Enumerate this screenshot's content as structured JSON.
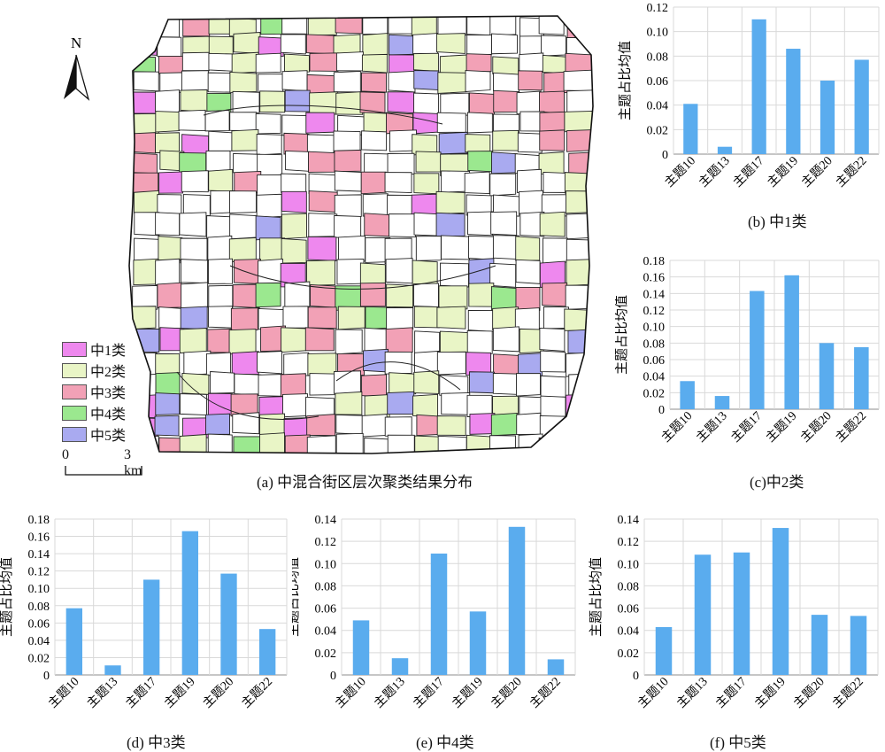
{
  "map": {
    "north_label": "N",
    "scale_zero": "0",
    "scale_label": "3 km",
    "caption": "(a) 中混合街区层次聚类结果分布",
    "legend": [
      {
        "label": "中1类",
        "color": "#ee88ee"
      },
      {
        "label": "中2类",
        "color": "#e9f5c6"
      },
      {
        "label": "中3类",
        "color": "#f2a1b6"
      },
      {
        "label": "中4类",
        "color": "#9be88f"
      },
      {
        "label": "中5类",
        "color": "#a9aaf0"
      }
    ]
  },
  "colors": {
    "bar": "#5aacee",
    "grid": "#d9d9d9",
    "axis": "#8c8c8c"
  },
  "chart_data": [
    {
      "id": "b",
      "type": "bar",
      "caption": "(b) 中1类",
      "ylabel": "主题占比均值",
      "categories": [
        "主题10",
        "主题13",
        "主题17",
        "主题19",
        "主题20",
        "主题22"
      ],
      "values": [
        0.041,
        0.006,
        0.11,
        0.086,
        0.06,
        0.077
      ],
      "ylim": [
        0,
        0.12
      ],
      "yticks": [
        "0",
        "0.02",
        "0.04",
        "0.06",
        "0.08",
        "0.10",
        "0.12"
      ],
      "grid": true
    },
    {
      "id": "c",
      "type": "bar",
      "caption": "(c)中2类",
      "ylabel": "主题占比均值",
      "categories": [
        "主题10",
        "主题13",
        "主题17",
        "主题19",
        "主题20",
        "主题22"
      ],
      "values": [
        0.034,
        0.016,
        0.143,
        0.162,
        0.08,
        0.075
      ],
      "ylim": [
        0,
        0.18
      ],
      "yticks": [
        "0",
        "0.02",
        "0.04",
        "0.06",
        "0.08",
        "0.10",
        "0.12",
        "0.14",
        "0.16",
        "0.18"
      ],
      "grid": true
    },
    {
      "id": "d",
      "type": "bar",
      "caption": "(d) 中3类",
      "ylabel": "主题占比均值",
      "categories": [
        "主题10",
        "主题13",
        "主题17",
        "主题19",
        "主题20",
        "主题22"
      ],
      "values": [
        0.077,
        0.011,
        0.11,
        0.166,
        0.117,
        0.053
      ],
      "ylim": [
        0,
        0.18
      ],
      "yticks": [
        "0",
        "0.02",
        "0.04",
        "0.06",
        "0.08",
        "0.10",
        "0.12",
        "0.14",
        "0.16",
        "0.18"
      ],
      "grid": true
    },
    {
      "id": "e",
      "type": "bar",
      "caption": "(e) 中4类",
      "ylabel": "主题占比均值",
      "categories": [
        "主题10",
        "主题13",
        "主题17",
        "主题19",
        "主题20",
        "主题22"
      ],
      "values": [
        0.049,
        0.015,
        0.109,
        0.057,
        0.133,
        0.014
      ],
      "ylim": [
        0,
        0.14
      ],
      "yticks": [
        "0",
        "0.02",
        "0.04",
        "0.06",
        "0.08",
        "0.10",
        "0.12",
        "0.14"
      ],
      "grid": true
    },
    {
      "id": "f",
      "type": "bar",
      "caption": "(f) 中5类",
      "ylabel": "主题占比均值",
      "categories": [
        "主题10",
        "主题13",
        "主题17",
        "主题19",
        "主题20",
        "主题22"
      ],
      "values": [
        0.043,
        0.108,
        0.11,
        0.132,
        0.054,
        0.053
      ],
      "ylim": [
        0,
        0.14
      ],
      "yticks": [
        "0",
        "0.02",
        "0.04",
        "0.06",
        "0.08",
        "0.10",
        "0.12",
        "0.14"
      ],
      "grid": true
    }
  ]
}
